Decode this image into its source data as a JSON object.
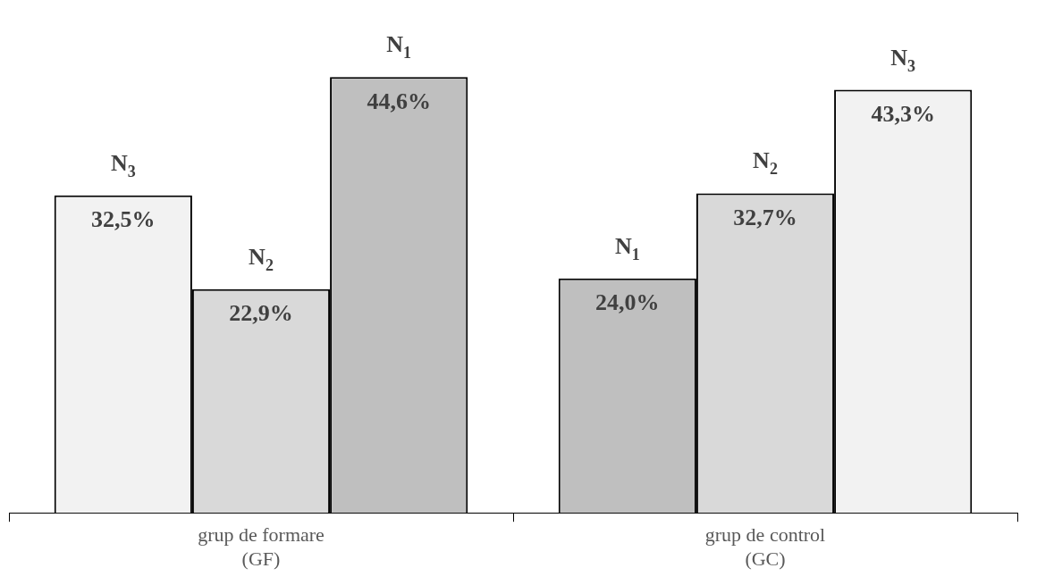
{
  "chart_data": {
    "type": "bar",
    "categories": [
      "grup de formare\n(GF)",
      "grup de control\n(GC)"
    ],
    "series": [
      {
        "values": [
          32.5,
          24.0
        ],
        "colors": [
          "#f2f2f2",
          "#bfbfbf"
        ],
        "value_labels": [
          "32,5%",
          "24,0%"
        ]
      },
      {
        "values": [
          22.9,
          32.7
        ],
        "colors": [
          "#d9d9d9",
          "#d9d9d9"
        ],
        "value_labels": [
          "22,9%",
          "32,7%"
        ]
      },
      {
        "values": [
          44.6,
          43.3
        ],
        "colors": [
          "#bfbfbf",
          "#f2f2f2"
        ],
        "value_labels": [
          "44,6%",
          "43,3%"
        ]
      }
    ],
    "annotations": [
      "N$_{3}$",
      "N$_{2}$",
      "N$_{1}$",
      "N$_{1}$",
      "N$_{2}$",
      "N$_{3}$"
    ],
    "legend": false,
    "grid": false
  }
}
